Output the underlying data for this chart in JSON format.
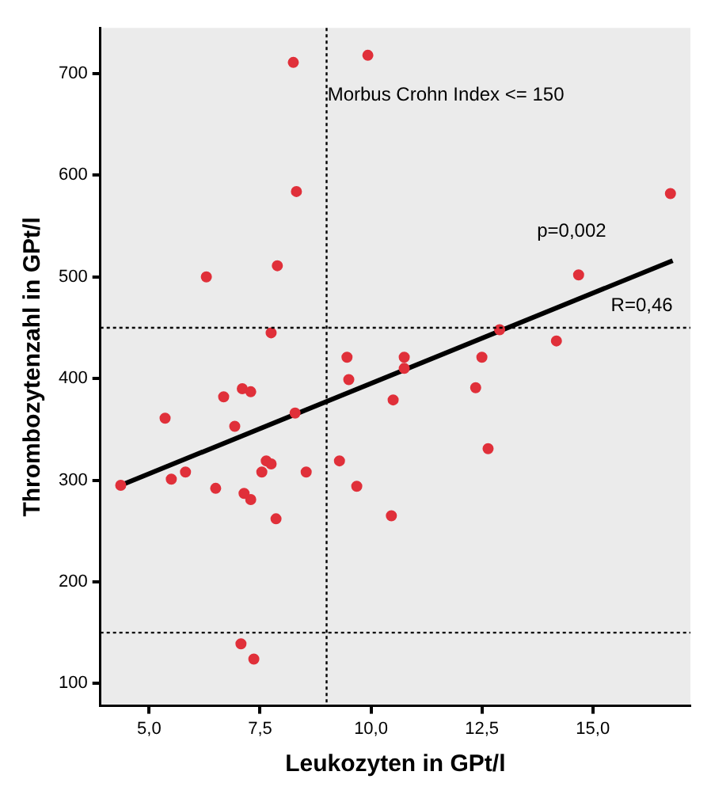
{
  "chart_data": {
    "type": "scatter",
    "xlabel": "Leukozyten in GPt/l",
    "ylabel": "Thrombozytenzahl in GPt/l",
    "xlim": [
      3.9,
      17.2
    ],
    "ylim": [
      78,
      745
    ],
    "xticks": [
      {
        "value": 5,
        "label": "5,0"
      },
      {
        "value": 7.5,
        "label": "7,5"
      },
      {
        "value": 10,
        "label": "10,0"
      },
      {
        "value": 12.5,
        "label": "12,5"
      },
      {
        "value": 15,
        "label": "15,0"
      }
    ],
    "yticks": [
      100,
      200,
      300,
      400,
      500,
      600,
      700
    ],
    "grid": false,
    "legend": false,
    "marker": "circle",
    "series": [
      {
        "type": "scatter",
        "color": "#e0303a",
        "x": [
          8.25,
          9.93,
          8.32,
          6.29,
          7.89,
          7.75,
          9.46,
          9.5,
          6.68,
          7.1,
          7.29,
          5.36,
          6.93,
          8.29,
          4.36,
          5.5,
          5.82,
          6.5,
          7.14,
          7.29,
          7.64,
          7.75,
          7.54,
          7.86,
          8.54,
          9.29,
          9.68,
          7.07,
          7.36,
          10.75,
          10.75,
          10.5,
          12.5,
          12.36,
          12.64,
          10.46,
          14.18,
          12.9,
          14.68,
          16.75
        ],
        "values": [
          711,
          718,
          584,
          500,
          511,
          445,
          421,
          399,
          382,
          390,
          387,
          361,
          353,
          366,
          295,
          301,
          308,
          292,
          287,
          281,
          319,
          316,
          308,
          262,
          308,
          319,
          294,
          139,
          124,
          421,
          410,
          379,
          421,
          391,
          331,
          265,
          437,
          448,
          502,
          582
        ]
      },
      {
        "type": "line",
        "color": "#000000",
        "marker": "none",
        "x": [
          4.36,
          16.8
        ],
        "values": [
          295,
          516
        ]
      }
    ],
    "ref_lines": [
      {
        "axis": "x",
        "value": 9,
        "line_style": "dotted",
        "color": "#000000"
      },
      {
        "axis": "y",
        "value": 150,
        "line_style": "dotted",
        "color": "#000000"
      },
      {
        "axis": "y",
        "value": 450,
        "line_style": "dotted",
        "color": "#000000"
      }
    ],
    "annotations": [
      "Morbus Crohn Index <= 150",
      "p=0,002",
      "R=0,46"
    ]
  }
}
